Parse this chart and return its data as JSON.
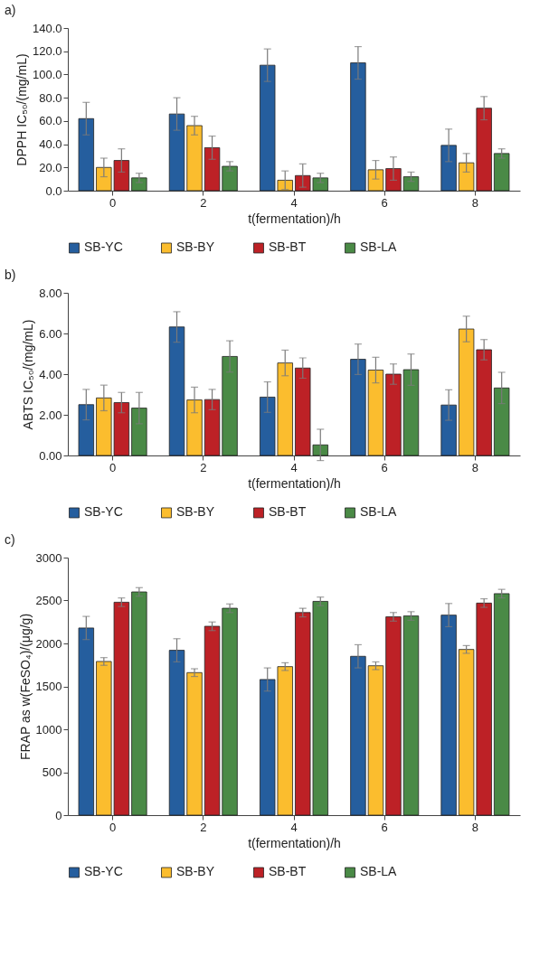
{
  "chart_data": [
    {
      "type": "bar",
      "title": "a)",
      "xlabel": "t(fermentation)/h",
      "ylabel": "DPPH IC₅₀/(mg/mL)",
      "categories": [
        "0",
        "2",
        "4",
        "6",
        "8"
      ],
      "ylim": [
        0,
        140
      ],
      "yticks": [
        {
          "value": 0,
          "label": "0.0"
        },
        {
          "value": 20,
          "label": "20.0"
        },
        {
          "value": 40,
          "label": "40.0"
        },
        {
          "value": 60,
          "label": "60.0"
        },
        {
          "value": 80,
          "label": "80.0"
        },
        {
          "value": 100,
          "label": "100.0"
        },
        {
          "value": 120,
          "label": "120.0"
        },
        {
          "value": 140,
          "label": "140.0"
        }
      ],
      "legend": "bottom",
      "grid": false,
      "series": [
        {
          "name": "SB-YC",
          "color": "#255e9e",
          "values": [
            62,
            66,
            108,
            110,
            39
          ],
          "errors": [
            14,
            14,
            14,
            14,
            14
          ]
        },
        {
          "name": "SB-BY",
          "color": "#fbbd2e",
          "values": [
            20,
            56,
            9,
            18,
            24
          ],
          "errors": [
            8,
            8,
            8,
            8,
            8
          ]
        },
        {
          "name": "SB-BT",
          "color": "#bd2126",
          "values": [
            26,
            37,
            13,
            19,
            71
          ],
          "errors": [
            10,
            10,
            10,
            10,
            10
          ]
        },
        {
          "name": "SB-LA",
          "color": "#4a8a46",
          "values": [
            11,
            21,
            11,
            12,
            32
          ],
          "errors": [
            4,
            4,
            4,
            4,
            4
          ]
        }
      ]
    },
    {
      "type": "bar",
      "title": "b)",
      "xlabel": "t(fermentation)/h",
      "ylabel": "ABTS IC₅₀/(mg/mL)",
      "categories": [
        "0",
        "2",
        "4",
        "6",
        "8"
      ],
      "ylim": [
        0,
        8
      ],
      "yticks": [
        {
          "value": 0,
          "label": "0.00"
        },
        {
          "value": 2,
          "label": "2.00"
        },
        {
          "value": 4,
          "label": "4.00"
        },
        {
          "value": 6,
          "label": "6.00"
        },
        {
          "value": 8,
          "label": "8.00"
        }
      ],
      "legend": "bottom",
      "grid": false,
      "series": [
        {
          "name": "SB-YC",
          "color": "#255e9e",
          "values": [
            2.5,
            6.32,
            2.87,
            4.73,
            2.48
          ],
          "errors": [
            0.75,
            0.75,
            0.75,
            0.75,
            0.75
          ]
        },
        {
          "name": "SB-BY",
          "color": "#fbbd2e",
          "values": [
            2.83,
            2.73,
            4.55,
            4.2,
            6.22
          ],
          "errors": [
            0.63,
            0.63,
            0.63,
            0.63,
            0.63
          ]
        },
        {
          "name": "SB-BT",
          "color": "#bd2126",
          "values": [
            2.6,
            2.75,
            4.3,
            4.0,
            5.2
          ],
          "errors": [
            0.5,
            0.5,
            0.5,
            0.5,
            0.5
          ]
        },
        {
          "name": "SB-LA",
          "color": "#4a8a46",
          "values": [
            2.33,
            4.87,
            0.52,
            4.22,
            3.32
          ],
          "errors": [
            0.77,
            0.77,
            0.77,
            0.77,
            0.77
          ]
        }
      ]
    },
    {
      "type": "bar",
      "title": "c)",
      "xlabel": "t(fermentation)/h",
      "ylabel": "FRAP as w(FeSO₄)/(μg/g)",
      "categories": [
        "0",
        "2",
        "4",
        "6",
        "8"
      ],
      "ylim": [
        0,
        3000
      ],
      "yticks": [
        0,
        500,
        1000,
        1500,
        2000,
        2500,
        3000
      ],
      "legend": "bottom",
      "grid": false,
      "series": [
        {
          "name": "SB-YC",
          "color": "#255e9e",
          "values": [
            2180,
            1920,
            1580,
            1850,
            2330
          ],
          "errors": [
            135,
            135,
            135,
            135,
            135
          ]
        },
        {
          "name": "SB-BY",
          "color": "#fbbd2e",
          "values": [
            1790,
            1660,
            1730,
            1740,
            1930
          ],
          "errors": [
            45,
            45,
            45,
            45,
            45
          ]
        },
        {
          "name": "SB-BT",
          "color": "#bd2126",
          "values": [
            2480,
            2200,
            2360,
            2310,
            2470
          ],
          "errors": [
            50,
            50,
            50,
            50,
            50
          ]
        },
        {
          "name": "SB-LA",
          "color": "#4a8a46",
          "values": [
            2600,
            2410,
            2490,
            2320,
            2580
          ],
          "errors": [
            50,
            50,
            50,
            50,
            50
          ]
        }
      ]
    }
  ]
}
